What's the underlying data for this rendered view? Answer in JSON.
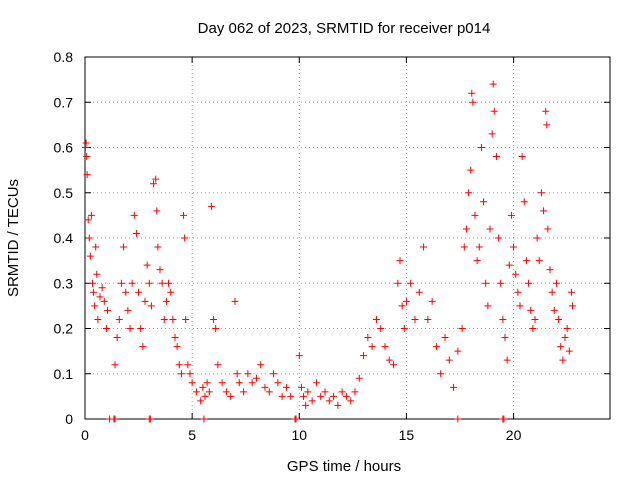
{
  "chart_data": {
    "type": "scatter",
    "title": "Day 062 of 2023, SRMTID for receiver p014",
    "xlabel": "GPS time / hours",
    "ylabel": "SRMTID / TECUs",
    "xlim": [
      0,
      24.5
    ],
    "ylim": [
      0,
      0.8
    ],
    "xticks": [
      0,
      5,
      10,
      15,
      20
    ],
    "yticks": [
      0,
      0.1,
      0.2,
      0.3,
      0.4,
      0.5,
      0.6,
      0.7,
      0.8
    ],
    "ytick_labels": [
      "0",
      "0.1",
      "0.2",
      "0.3",
      "0.4",
      "0.5",
      "0.6",
      "0.7",
      "0.8"
    ],
    "grid": true,
    "marker": "+",
    "series": [
      {
        "name": "p014",
        "color": "#ff0000",
        "points": [
          [
            0.02,
            0.6
          ],
          [
            0.05,
            0.61
          ],
          [
            0.08,
            0.58
          ],
          [
            0.1,
            0.54
          ],
          [
            0.15,
            0.44
          ],
          [
            0.2,
            0.4
          ],
          [
            0.25,
            0.36
          ],
          [
            0.3,
            0.45
          ],
          [
            0.35,
            0.3
          ],
          [
            0.4,
            0.28
          ],
          [
            0.45,
            0.25
          ],
          [
            0.5,
            0.38
          ],
          [
            0.55,
            0.32
          ],
          [
            0.6,
            0.22
          ],
          [
            0.7,
            0.27
          ],
          [
            0.8,
            0.29
          ],
          [
            0.9,
            0.26
          ],
          [
            1.0,
            0.2
          ],
          [
            1.05,
            0.24
          ],
          [
            1.4,
            0.12
          ],
          [
            1.5,
            0.18
          ],
          [
            1.6,
            0.22
          ],
          [
            1.7,
            0.3
          ],
          [
            1.8,
            0.38
          ],
          [
            1.9,
            0.28
          ],
          [
            2.0,
            0.24
          ],
          [
            2.1,
            0.2
          ],
          [
            2.2,
            0.3
          ],
          [
            2.3,
            0.45
          ],
          [
            2.4,
            0.41
          ],
          [
            2.5,
            0.28
          ],
          [
            2.6,
            0.2
          ],
          [
            2.7,
            0.16
          ],
          [
            2.8,
            0.26
          ],
          [
            2.9,
            0.34
          ],
          [
            3.0,
            0.3
          ],
          [
            3.1,
            0.25
          ],
          [
            3.2,
            0.52
          ],
          [
            3.3,
            0.53
          ],
          [
            3.35,
            0.46
          ],
          [
            3.4,
            0.38
          ],
          [
            3.5,
            0.33
          ],
          [
            3.6,
            0.3
          ],
          [
            3.7,
            0.22
          ],
          [
            3.8,
            0.26
          ],
          [
            3.9,
            0.3
          ],
          [
            4.0,
            0.28
          ],
          [
            4.1,
            0.22
          ],
          [
            4.2,
            0.18
          ],
          [
            4.3,
            0.16
          ],
          [
            4.4,
            0.12
          ],
          [
            4.5,
            0.1
          ],
          [
            4.6,
            0.45
          ],
          [
            4.65,
            0.4
          ],
          [
            4.7,
            0.22
          ],
          [
            4.8,
            0.12
          ],
          [
            4.9,
            0.1
          ],
          [
            5.0,
            0.08
          ],
          [
            5.2,
            0.06
          ],
          [
            5.4,
            0.04
          ],
          [
            5.5,
            0.07
          ],
          [
            5.6,
            0.05
          ],
          [
            5.7,
            0.08
          ],
          [
            5.8,
            0.06
          ],
          [
            5.9,
            0.47
          ],
          [
            6.0,
            0.22
          ],
          [
            6.1,
            0.2
          ],
          [
            6.2,
            0.12
          ],
          [
            6.4,
            0.08
          ],
          [
            6.6,
            0.06
          ],
          [
            6.8,
            0.05
          ],
          [
            7.0,
            0.26
          ],
          [
            7.1,
            0.1
          ],
          [
            7.2,
            0.08
          ],
          [
            7.4,
            0.06
          ],
          [
            7.6,
            0.1
          ],
          [
            7.8,
            0.08
          ],
          [
            8.0,
            0.09
          ],
          [
            8.2,
            0.12
          ],
          [
            8.4,
            0.07
          ],
          [
            8.6,
            0.06
          ],
          [
            8.8,
            0.1
          ],
          [
            9.0,
            0.08
          ],
          [
            9.2,
            0.05
          ],
          [
            9.4,
            0.07
          ],
          [
            9.6,
            0.05
          ],
          [
            10.0,
            0.14
          ],
          [
            10.1,
            0.07
          ],
          [
            10.2,
            0.05
          ],
          [
            10.3,
            0.03
          ],
          [
            10.4,
            0.06
          ],
          [
            10.6,
            0.04
          ],
          [
            10.8,
            0.08
          ],
          [
            11.0,
            0.05
          ],
          [
            11.2,
            0.06
          ],
          [
            11.4,
            0.04
          ],
          [
            11.6,
            0.05
          ],
          [
            11.8,
            0.03
          ],
          [
            12.0,
            0.06
          ],
          [
            12.2,
            0.05
          ],
          [
            12.4,
            0.04
          ],
          [
            12.6,
            0.06
          ],
          [
            12.8,
            0.09
          ],
          [
            13.0,
            0.14
          ],
          [
            13.2,
            0.18
          ],
          [
            13.4,
            0.16
          ],
          [
            13.6,
            0.22
          ],
          [
            13.8,
            0.2
          ],
          [
            14.0,
            0.16
          ],
          [
            14.2,
            0.13
          ],
          [
            14.4,
            0.12
          ],
          [
            14.6,
            0.3
          ],
          [
            14.7,
            0.35
          ],
          [
            14.8,
            0.25
          ],
          [
            14.9,
            0.2
          ],
          [
            15.0,
            0.26
          ],
          [
            15.2,
            0.3
          ],
          [
            15.4,
            0.22
          ],
          [
            15.6,
            0.28
          ],
          [
            15.8,
            0.38
          ],
          [
            16.0,
            0.22
          ],
          [
            16.2,
            0.26
          ],
          [
            16.4,
            0.16
          ],
          [
            16.6,
            0.1
          ],
          [
            16.8,
            0.18
          ],
          [
            17.0,
            0.13
          ],
          [
            17.2,
            0.07
          ],
          [
            17.4,
            0.15
          ],
          [
            17.6,
            0.2
          ],
          [
            17.7,
            0.38
          ],
          [
            17.8,
            0.42
          ],
          [
            17.9,
            0.5
          ],
          [
            18.0,
            0.55
          ],
          [
            18.05,
            0.72
          ],
          [
            18.1,
            0.7
          ],
          [
            18.2,
            0.45
          ],
          [
            18.3,
            0.35
          ],
          [
            18.4,
            0.38
          ],
          [
            18.5,
            0.6
          ],
          [
            18.6,
            0.48
          ],
          [
            18.7,
            0.3
          ],
          [
            18.8,
            0.25
          ],
          [
            18.9,
            0.42
          ],
          [
            19.0,
            0.63
          ],
          [
            19.05,
            0.74
          ],
          [
            19.1,
            0.68
          ],
          [
            19.2,
            0.58
          ],
          [
            19.3,
            0.4
          ],
          [
            19.4,
            0.3
          ],
          [
            19.5,
            0.22
          ],
          [
            19.6,
            0.18
          ],
          [
            19.7,
            0.13
          ],
          [
            19.8,
            0.34
          ],
          [
            19.9,
            0.45
          ],
          [
            20.0,
            0.38
          ],
          [
            20.1,
            0.32
          ],
          [
            20.2,
            0.28
          ],
          [
            20.3,
            0.25
          ],
          [
            20.4,
            0.58
          ],
          [
            20.5,
            0.48
          ],
          [
            20.6,
            0.35
          ],
          [
            20.7,
            0.3
          ],
          [
            20.8,
            0.24
          ],
          [
            20.9,
            0.2
          ],
          [
            21.0,
            0.22
          ],
          [
            21.1,
            0.4
          ],
          [
            21.2,
            0.35
          ],
          [
            21.3,
            0.5
          ],
          [
            21.4,
            0.46
          ],
          [
            21.5,
            0.68
          ],
          [
            21.55,
            0.65
          ],
          [
            21.6,
            0.42
          ],
          [
            21.7,
            0.33
          ],
          [
            21.8,
            0.28
          ],
          [
            21.9,
            0.24
          ],
          [
            22.0,
            0.3
          ],
          [
            22.1,
            0.22
          ],
          [
            22.2,
            0.16
          ],
          [
            22.3,
            0.13
          ],
          [
            22.4,
            0.18
          ],
          [
            22.5,
            0.2
          ],
          [
            22.6,
            0.15
          ],
          [
            22.7,
            0.28
          ],
          [
            22.75,
            0.25
          ]
        ],
        "markers_at_zero": [
          1.15,
          1.35,
          1.4,
          3.0,
          3.05,
          5.55,
          9.8,
          9.85,
          17.4,
          19.5,
          19.55
        ]
      }
    ]
  }
}
